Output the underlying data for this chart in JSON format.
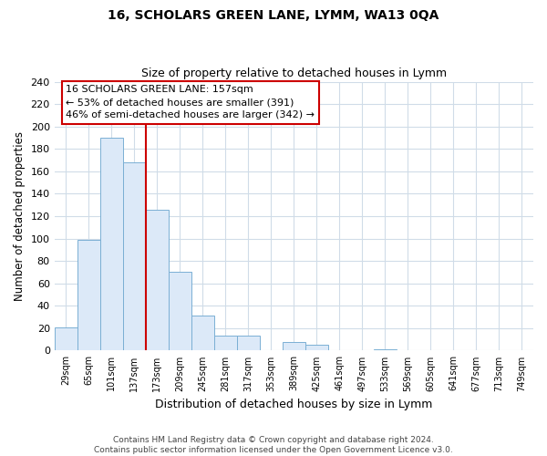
{
  "title": "16, SCHOLARS GREEN LANE, LYMM, WA13 0QA",
  "subtitle": "Size of property relative to detached houses in Lymm",
  "xlabel": "Distribution of detached houses by size in Lymm",
  "ylabel": "Number of detached properties",
  "bar_labels": [
    "29sqm",
    "65sqm",
    "101sqm",
    "137sqm",
    "173sqm",
    "209sqm",
    "245sqm",
    "281sqm",
    "317sqm",
    "353sqm",
    "389sqm",
    "425sqm",
    "461sqm",
    "497sqm",
    "533sqm",
    "569sqm",
    "605sqm",
    "641sqm",
    "677sqm",
    "713sqm",
    "749sqm"
  ],
  "bar_values": [
    21,
    99,
    190,
    168,
    126,
    70,
    31,
    13,
    13,
    0,
    8,
    5,
    0,
    0,
    1,
    0,
    0,
    0,
    0,
    0,
    0
  ],
  "bar_color": "#dce9f8",
  "bar_edge_color": "#7bafd4",
  "vline_color": "#cc0000",
  "vline_x_index": 3.5,
  "ylim": [
    0,
    240
  ],
  "yticks": [
    0,
    20,
    40,
    60,
    80,
    100,
    120,
    140,
    160,
    180,
    200,
    220,
    240
  ],
  "annotation_text": "16 SCHOLARS GREEN LANE: 157sqm\n← 53% of detached houses are smaller (391)\n46% of semi-detached houses are larger (342) →",
  "footer": "Contains HM Land Registry data © Crown copyright and database right 2024.\nContains public sector information licensed under the Open Government Licence v3.0.",
  "bg_color": "#ffffff",
  "grid_color": "#d0dce8"
}
